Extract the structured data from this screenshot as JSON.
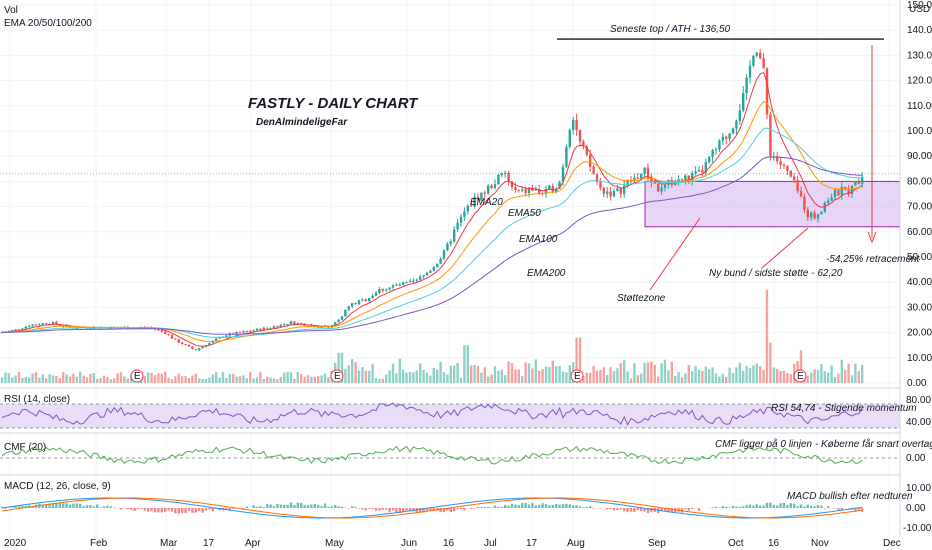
{
  "chart_data": {
    "type": "candlestick",
    "title": "FASTLY - DAILY CHART",
    "subtitle": "DenAlmindeligeFar",
    "indicators_legend": [
      "Vol",
      "EMA 20/50/100/200"
    ],
    "currency": "USD",
    "current_price": "83.00",
    "price_axis": {
      "ticks": [
        "150.00",
        "140.00",
        "130.00",
        "120.00",
        "110.00",
        "100.00",
        "90.00",
        "80.00",
        "70.00",
        "60.00",
        "50.00",
        "40.00",
        "30.00",
        "20.00",
        "10.00",
        "0.00"
      ],
      "min": 0,
      "max": 150
    },
    "time_axis": {
      "ticks": [
        "2020",
        "Feb",
        "Mar",
        "17",
        "Apr",
        "May",
        "Jun",
        "16",
        "Jul",
        "17",
        "Aug",
        "Sep",
        "Oct",
        "16",
        "Nov",
        "Dec"
      ]
    },
    "price_points": [
      [
        0,
        20
      ],
      [
        15,
        21
      ],
      [
        30,
        23
      ],
      [
        50,
        24
      ],
      [
        70,
        22
      ],
      [
        90,
        22
      ],
      [
        110,
        22
      ],
      [
        130,
        22
      ],
      [
        150,
        22
      ],
      [
        165,
        20
      ],
      [
        175,
        17
      ],
      [
        185,
        15
      ],
      [
        195,
        13
      ],
      [
        205,
        15
      ],
      [
        215,
        17
      ],
      [
        225,
        19
      ],
      [
        240,
        20
      ],
      [
        255,
        21
      ],
      [
        270,
        22
      ],
      [
        290,
        24
      ],
      [
        310,
        23
      ],
      [
        330,
        22
      ],
      [
        340,
        26
      ],
      [
        350,
        31
      ],
      [
        365,
        33
      ],
      [
        380,
        37
      ],
      [
        400,
        39
      ],
      [
        415,
        40
      ],
      [
        425,
        43
      ],
      [
        435,
        47
      ],
      [
        445,
        52
      ],
      [
        455,
        61
      ],
      [
        465,
        68
      ],
      [
        475,
        73
      ],
      [
        485,
        76
      ],
      [
        495,
        80
      ],
      [
        505,
        83
      ],
      [
        512,
        77
      ],
      [
        520,
        75
      ],
      [
        530,
        77
      ],
      [
        545,
        75
      ],
      [
        560,
        80
      ],
      [
        572,
        108
      ],
      [
        580,
        95
      ],
      [
        590,
        86
      ],
      [
        600,
        77
      ],
      [
        615,
        75
      ],
      [
        630,
        80
      ],
      [
        645,
        84
      ],
      [
        660,
        76
      ],
      [
        672,
        80
      ],
      [
        685,
        81
      ],
      [
        700,
        83
      ],
      [
        715,
        92
      ],
      [
        730,
        100
      ],
      [
        745,
        115
      ],
      [
        755,
        136
      ],
      [
        763,
        125
      ],
      [
        770,
        92
      ],
      [
        780,
        87
      ],
      [
        790,
        82
      ],
      [
        800,
        74
      ],
      [
        808,
        67
      ],
      [
        815,
        66
      ],
      [
        822,
        70
      ],
      [
        830,
        74
      ],
      [
        840,
        76
      ],
      [
        852,
        77
      ],
      [
        862,
        83
      ]
    ],
    "ema": [
      {
        "name": "EMA20",
        "color": "#f23645"
      },
      {
        "name": "EMA50",
        "color": "#ff9800"
      },
      {
        "name": "EMA100",
        "color": "#4dd0e1"
      },
      {
        "name": "EMA200",
        "color": "#7e57c2"
      }
    ],
    "annotations": {
      "ath": "Seneste top / ATH - 136,50",
      "retrace": "-54,25% retracement",
      "new_low": "Ny bund / sidste støtte - 62,20",
      "support": "Støttezone"
    },
    "support_zone": [
      62,
      80
    ],
    "volume_spikes": [
      [
        340,
        12
      ],
      [
        466,
        15
      ],
      [
        578,
        18
      ],
      [
        767,
        37
      ],
      [
        770,
        16
      ],
      [
        800,
        13
      ]
    ],
    "earnings_marker": "E",
    "rsi": {
      "label": "RSI (14, close)",
      "ticks": [
        "80.00",
        "40.00"
      ],
      "note": "RSI 54,74 - Stigende momentum"
    },
    "cmf": {
      "label": "CMF (20)",
      "ticks": [
        "0.00"
      ],
      "note": "CMF ligger på 0 linjen - Køberne får snart overtaget"
    },
    "macd": {
      "label": "MACD (12, 26, close, 9)",
      "ticks": [
        "10.00",
        "0.00",
        "-10.00"
      ],
      "note": "MACD bullish efter nedturen"
    }
  },
  "colors": {
    "up": "#26a69a",
    "down": "#ef5350",
    "zone": "#d1b3f0",
    "zoneBorder": "#9c27b0",
    "rsiBand": "#e9ddf7",
    "rsiLine": "#7e57c2",
    "cmfLine": "#4caf50",
    "macdLine": "#2196f3",
    "signalLine": "#ff6d00",
    "price": "#26a69a"
  }
}
